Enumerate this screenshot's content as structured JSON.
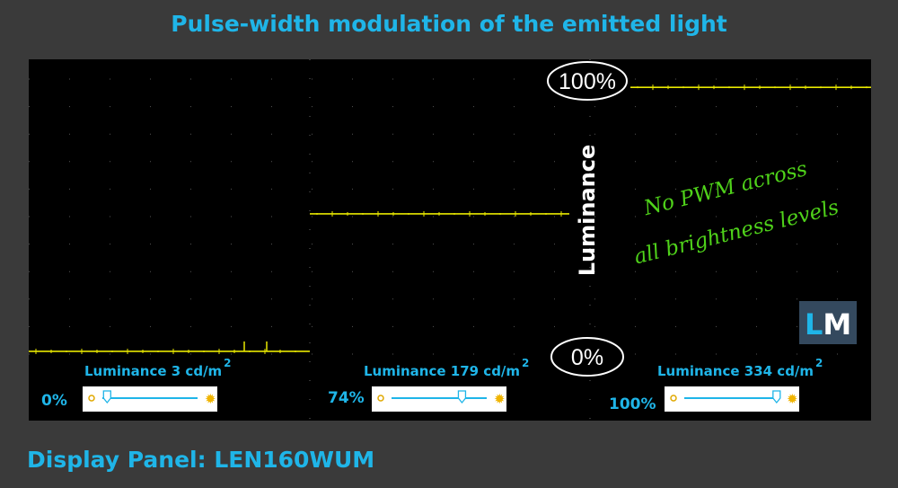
{
  "title": "Pulse-width modulation of the emitted light",
  "footer": "Display Panel: LEN160WUM",
  "chart_data": {
    "type": "line",
    "title": "Pulse-width modulation of the emitted light",
    "ylabel": "Luminance",
    "y_markers": {
      "top": "100%",
      "bottom": "0%"
    },
    "ylim": [
      0,
      100
    ],
    "grid": true,
    "series": [
      {
        "brightness_setting": "0%",
        "luminance": "3 cd/m",
        "level": 1
      },
      {
        "brightness_setting": "74%",
        "luminance": "179 cd/m",
        "level": 51
      },
      {
        "brightness_setting": "100%",
        "luminance": "334 cd/m",
        "level": 97
      }
    ],
    "unit_superscript": "2",
    "annotation": [
      "No PWM across",
      "all brightness levels"
    ],
    "logo": "LM",
    "colors": {
      "trace": "#e8e800",
      "background": "#000000",
      "accent": "#1fb5e8",
      "annotation": "#4fd21a"
    }
  }
}
